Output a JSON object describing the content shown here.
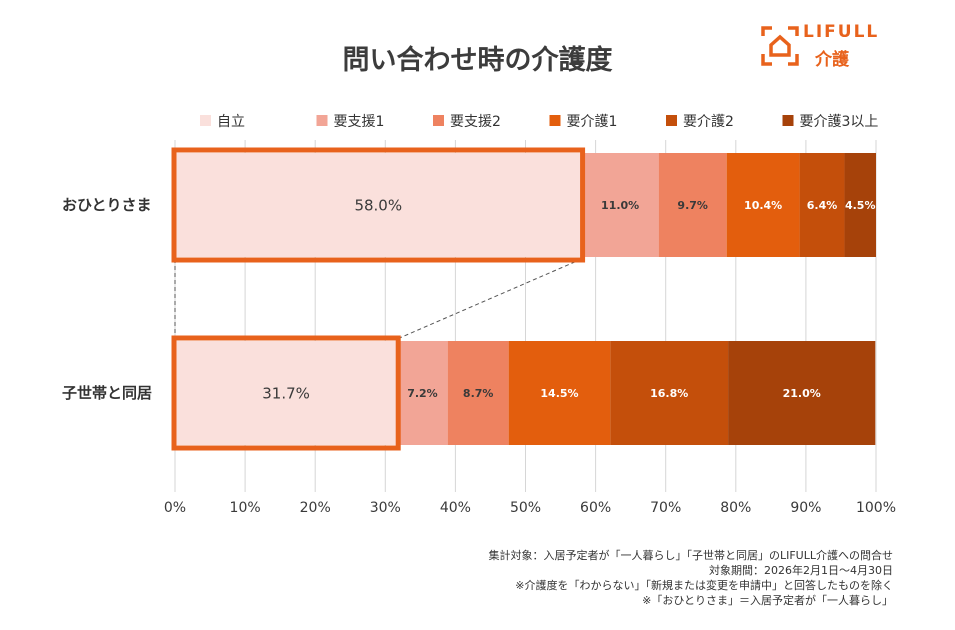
{
  "chart_data": {
    "type": "bar",
    "orientation": "horizontal",
    "stacked": true,
    "percent": true,
    "title": "問い合わせ時の介護度",
    "categories": [
      "おひとりさま",
      "子世帯と同居"
    ],
    "series": [
      {
        "name": "自立",
        "values": [
          58.0,
          31.7
        ],
        "color": "#fae0dc"
      },
      {
        "name": "要支援1",
        "values": [
          11.0,
          7.2
        ],
        "color": "#f2a596"
      },
      {
        "name": "要支援2",
        "values": [
          9.7,
          8.7
        ],
        "color": "#ee8260"
      },
      {
        "name": "要介護1",
        "values": [
          10.4,
          14.5
        ],
        "color": "#e35e0d"
      },
      {
        "name": "要介護2",
        "values": [
          6.4,
          16.8
        ],
        "color": "#c44f0b"
      },
      {
        "name": "要介護3以上",
        "values": [
          4.5,
          21.0
        ],
        "color": "#a6420a"
      }
    ],
    "labels": [
      [
        "58.0%",
        "11.0%",
        "9.7%",
        "10.4%",
        "6.4%",
        "4.5%"
      ],
      [
        "31.7%",
        "7.2%",
        "8.7%",
        "14.5%",
        "16.8%",
        "21.0%"
      ]
    ],
    "xlim": [
      0,
      100
    ],
    "xticks": [
      "0%",
      "10%",
      "20%",
      "30%",
      "40%",
      "50%",
      "60%",
      "70%",
      "80%",
      "90%",
      "100%"
    ],
    "grid": true,
    "legend_position": "top",
    "highlight_series": "自立",
    "highlight_color": "#e8621c"
  },
  "logo": {
    "text": "LIFULL",
    "sub": "介護"
  },
  "notes": [
    "集計対象：入居予定者が「一人暮らし」「子世帯と同居」のLIFULL介護への問合せ",
    "対象期間：2026年2月1日～4月30日",
    "※介護度を「わからない」「新規または変更を申請中」と回答したものを除く",
    "※「おひとりさま」＝入居予定者が「一人暮らし」"
  ]
}
